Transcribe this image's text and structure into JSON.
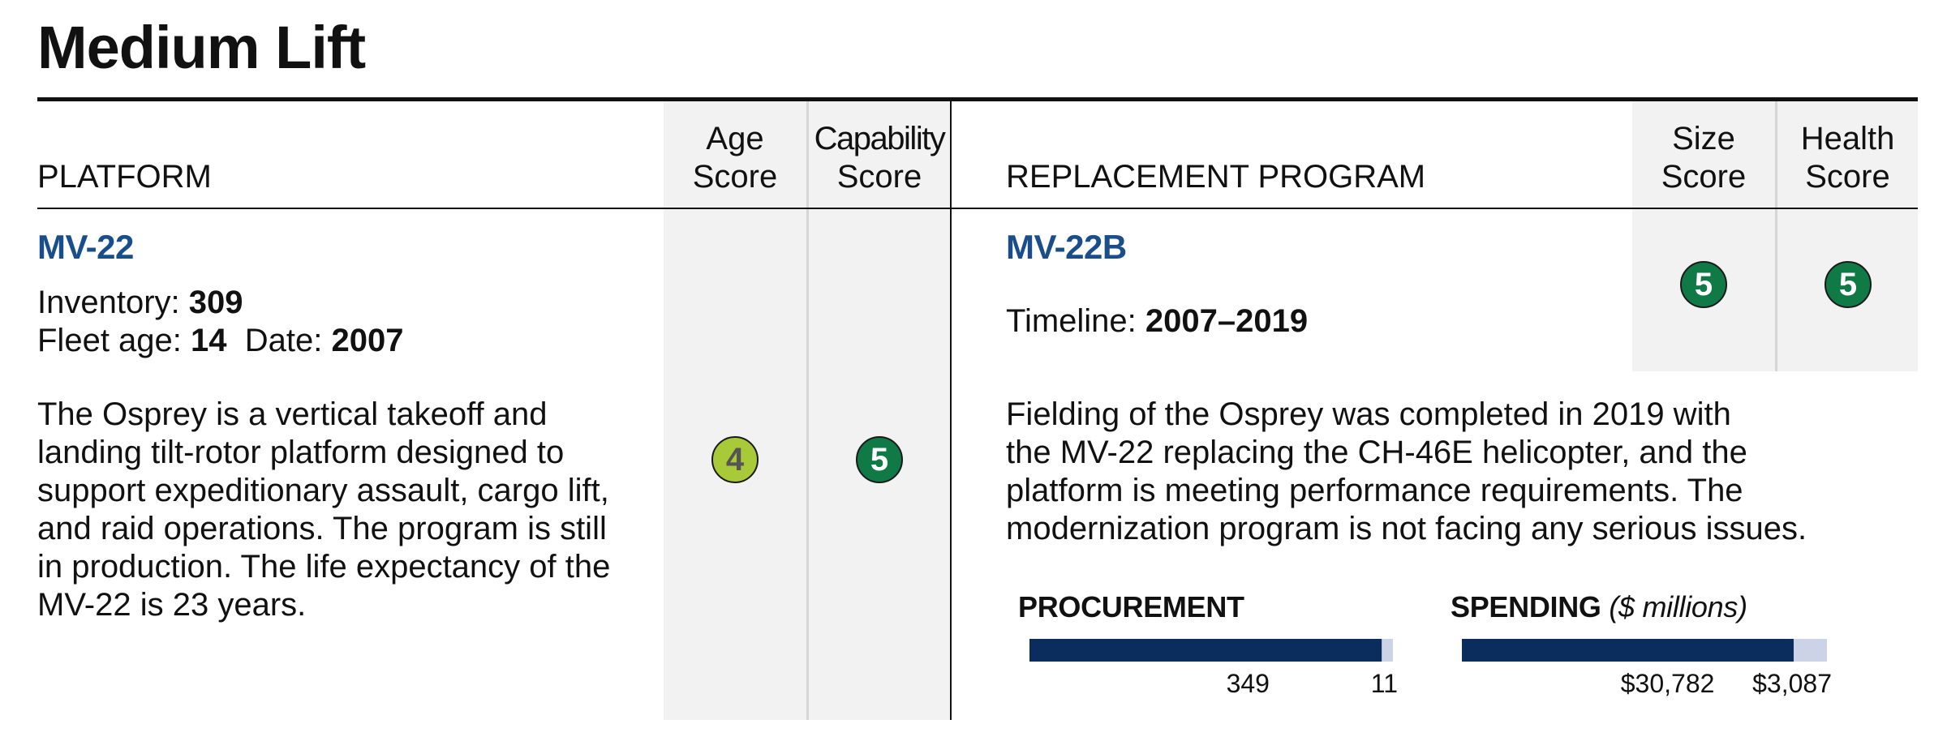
{
  "title": "Medium Lift",
  "headers": {
    "platform": "PLATFORM",
    "age_score": [
      "Age",
      "Score"
    ],
    "capability_score": [
      "Capability",
      "Score"
    ],
    "replacement_program": "REPLACEMENT PROGRAM",
    "size_score": [
      "Size",
      "Score"
    ],
    "health_score": [
      "Health",
      "Score"
    ]
  },
  "platform": {
    "name": "MV-22",
    "inventory_label": "Inventory:",
    "inventory_value": "309",
    "fleet_age_label": "Fleet age:",
    "fleet_age_value": "14",
    "date_label": "Date:",
    "date_value": "2007",
    "description_lines": [
      "The Osprey is a vertical takeoff and",
      "landing tilt-rotor platform designed to",
      "support expeditionary assault, cargo lift,",
      "and raid operations. The program is still",
      "in production. The life expectancy of the",
      "MV-22 is 23 years."
    ]
  },
  "scores": {
    "age": {
      "value": "4",
      "color": "#a8c938",
      "text_color": "#555555"
    },
    "capability": {
      "value": "5",
      "color": "#0f7a45",
      "text_color": "#ffffff"
    },
    "size": {
      "value": "5",
      "color": "#0f7a45",
      "text_color": "#ffffff"
    },
    "health": {
      "value": "5",
      "color": "#0f7a45",
      "text_color": "#ffffff"
    }
  },
  "replacement": {
    "name": "MV-22B",
    "timeline_label": "Timeline:",
    "timeline_value": "2007–2019",
    "description_lines": [
      "Fielding of the Osprey was completed in 2019 with",
      "the MV-22 replacing the CH-46E helicopter, and the",
      "platform is meeting performance requirements. The",
      "modernization program is not facing any serious issues."
    ]
  },
  "colors": {
    "bar_primary": "#0b2d5e",
    "bar_remaining": "#ccd3e6",
    "program_name": "#1a4e8a"
  },
  "chart_data": [
    {
      "type": "bar",
      "title": "PROCUREMENT",
      "subtitle": "",
      "orientation": "horizontal-stacked",
      "series": [
        {
          "values": [
            349
          ],
          "label": "349"
        },
        {
          "values": [
            11
          ],
          "label": "11"
        }
      ]
    },
    {
      "type": "bar",
      "title": "SPENDING",
      "subtitle": "($ millions)",
      "orientation": "horizontal-stacked",
      "series": [
        {
          "values": [
            30782
          ],
          "label": "$30,782"
        },
        {
          "values": [
            3087
          ],
          "label": "$3,087"
        }
      ]
    }
  ]
}
